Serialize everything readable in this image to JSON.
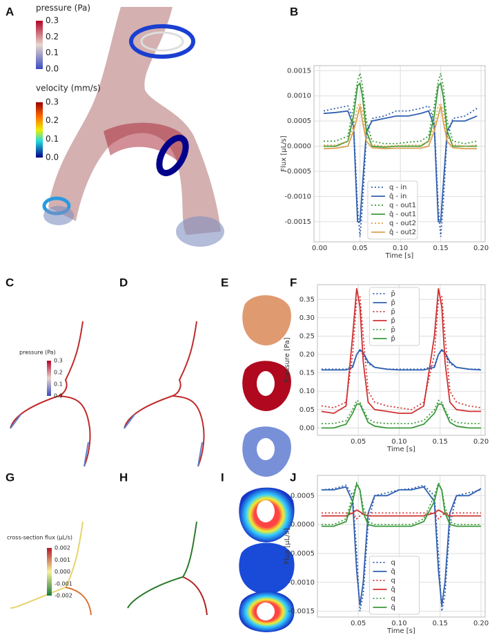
{
  "panel_labels": [
    "A",
    "B",
    "C",
    "D",
    "E",
    "F",
    "G",
    "H",
    "I",
    "J"
  ],
  "colorbars": [
    {
      "title": "pressure (Pa)",
      "ticks": [
        "0.3",
        "0.2",
        "0.1",
        "0.0"
      ]
    },
    {
      "title": "velocity (mm/s)",
      "ticks": [
        "0.3",
        "0.2",
        "0.1",
        "0.0"
      ]
    },
    {
      "title": "pressure (Pa)",
      "ticks": [
        "0.3",
        "0.2",
        "0.1",
        "0.0"
      ]
    },
    {
      "title": "cross-section flux (µL/s)",
      "ticks": [
        "0.002",
        "0.001",
        "0.000",
        "-0.001",
        "-0.002"
      ]
    }
  ],
  "chart_data": [
    {
      "type": "line",
      "xlabel": "Time [s]",
      "ylabel": "Flux [µL/s]",
      "grid": true,
      "legend": "lower center",
      "xlim": [
        -0.007,
        0.205
      ],
      "ylim": [
        -0.0019,
        0.0016
      ],
      "xticks": [
        {
          "value": 0,
          "label": "0.00"
        },
        0.05,
        {
          "value": 0.1,
          "label": "0.10"
        },
        0.15,
        {
          "value": 0.2,
          "label": "0.20"
        }
      ],
      "yticks": [
        {
          "value": -0.0015,
          "label": "-0.0015"
        },
        {
          "value": -0.001,
          "label": "-0.0010"
        },
        {
          "value": -0.0005,
          "label": "-0.0005"
        },
        {
          "value": 0,
          "label": "0.0000"
        },
        {
          "value": 0.0005,
          "label": "0.0005"
        },
        {
          "value": 0.001,
          "label": "0.0010"
        },
        {
          "value": 0.0015,
          "label": "0.0015"
        }
      ],
      "x": [
        0.005,
        0.02,
        0.035,
        0.042,
        0.047,
        0.05,
        0.053,
        0.058,
        0.065,
        0.08,
        0.095,
        0.11,
        0.125,
        0.135,
        0.142,
        0.147,
        0.15,
        0.153,
        0.158,
        0.165,
        0.18,
        0.195
      ],
      "series": [
        {
          "name": "q - in",
          "color": "#2f5fb0",
          "style": "dotted",
          "values": [
            0.0007,
            0.00075,
            0.0008,
            0.0005,
            -0.0012,
            -0.0018,
            -0.0012,
            0.0002,
            0.00055,
            0.0006,
            0.0007,
            0.0007,
            0.00075,
            0.0008,
            0.0005,
            -0.0012,
            -0.0018,
            -0.0012,
            0.0002,
            0.00055,
            0.0006,
            0.00075
          ]
        },
        {
          "name": "q̂ - in",
          "color": "#2f5fb0",
          "style": "solid",
          "values": [
            0.00065,
            0.00067,
            0.0007,
            0.0004,
            -0.0015,
            -0.0015,
            -0.0008,
            0.0003,
            0.0005,
            0.00055,
            0.0006,
            0.0006,
            0.00065,
            0.0007,
            0.0004,
            -0.0015,
            -0.0015,
            -0.0008,
            0.0003,
            0.0005,
            0.0005,
            0.0006
          ]
        },
        {
          "name": "q - out1",
          "color": "#3a9a3a",
          "style": "dotted",
          "values": [
            0.0001,
            0.0001,
            0.0002,
            0.0008,
            0.0013,
            0.00145,
            0.0012,
            0.0005,
            0.0001,
            5e-05,
            5e-05,
            8e-05,
            0.0001,
            0.0002,
            0.0008,
            0.0013,
            0.00145,
            0.0012,
            0.0005,
            0.0001,
            5e-05,
            0.0001
          ]
        },
        {
          "name": "q̂ - out1",
          "color": "#3a9a3a",
          "style": "solid",
          "values": [
            0,
            0,
            0.0001,
            0.0006,
            0.0012,
            0.00125,
            0.001,
            0.0003,
            0,
            -2e-05,
            0,
            0,
            0,
            0.0001,
            0.0006,
            0.0012,
            0.00125,
            0.001,
            0.0003,
            0,
            0,
            0
          ]
        },
        {
          "name": "q - out2",
          "color": "#e0a040",
          "style": "dotted",
          "values": [
            2e-05,
            2e-05,
            0.0001,
            0.0004,
            0.0008,
            0.00085,
            0.0007,
            0.0002,
            3e-05,
            0,
            1e-05,
            2e-05,
            2e-05,
            0.0001,
            0.0004,
            0.0008,
            0.00085,
            0.0007,
            0.0002,
            3e-05,
            0,
            2e-05
          ]
        },
        {
          "name": "q̂ - out2",
          "color": "#d9a050",
          "style": "solid",
          "values": [
            -5e-05,
            -4e-05,
            0,
            0.0003,
            0.0006,
            0.0008,
            0.0005,
            0.0001,
            -3e-05,
            -5e-05,
            -4e-05,
            -4e-05,
            -4e-05,
            0,
            0.0003,
            0.0006,
            0.0008,
            0.0005,
            0.0001,
            -3e-05,
            -5e-05,
            -5e-05
          ]
        }
      ]
    },
    {
      "type": "line",
      "xlabel": "Time [s]",
      "ylabel": "Pressure [Pa]",
      "grid": true,
      "legend": "upper center",
      "xlim": [
        0,
        0.205
      ],
      "ylim": [
        -0.02,
        0.39
      ],
      "xticks": [
        0.05,
        {
          "value": 0.1,
          "label": "0.10"
        },
        0.15,
        {
          "value": 0.2,
          "label": "0.20"
        }
      ],
      "yticks": [
        {
          "value": 0,
          "label": "0.00"
        },
        0.05,
        {
          "value": 0.1,
          "label": "0.10"
        },
        0.15,
        {
          "value": 0.2,
          "label": "0.20"
        },
        0.25,
        {
          "value": 0.3,
          "label": "0.30"
        },
        0.35
      ],
      "x": [
        0.005,
        0.02,
        0.035,
        0.043,
        0.048,
        0.052,
        0.056,
        0.062,
        0.07,
        0.085,
        0.1,
        0.115,
        0.13,
        0.143,
        0.148,
        0.152,
        0.156,
        0.162,
        0.17,
        0.185,
        0.2
      ],
      "series": [
        {
          "name": "p̄",
          "color": "#2f5fb0",
          "style": "dotted",
          "values": [
            0.16,
            0.16,
            0.16,
            0.17,
            0.2,
            0.21,
            0.2,
            0.175,
            0.165,
            0.16,
            0.16,
            0.16,
            0.16,
            0.17,
            0.2,
            0.21,
            0.2,
            0.175,
            0.165,
            0.16,
            0.16
          ]
        },
        {
          "name": "p̂",
          "color": "#2f5fb0",
          "style": "solid",
          "values": [
            0.158,
            0.158,
            0.158,
            0.165,
            0.2,
            0.213,
            0.205,
            0.18,
            0.165,
            0.16,
            0.158,
            0.158,
            0.158,
            0.165,
            0.2,
            0.213,
            0.205,
            0.18,
            0.165,
            0.16,
            0.158
          ]
        },
        {
          "name": "p̄",
          "color": "#d03030",
          "style": "dotted",
          "values": [
            0.06,
            0.055,
            0.07,
            0.2,
            0.35,
            0.36,
            0.25,
            0.1,
            0.07,
            0.06,
            0.055,
            0.05,
            0.07,
            0.2,
            0.35,
            0.36,
            0.25,
            0.1,
            0.07,
            0.06,
            0.055
          ]
        },
        {
          "name": "p̂",
          "color": "#d03030",
          "style": "solid",
          "values": [
            0.045,
            0.04,
            0.06,
            0.25,
            0.38,
            0.33,
            0.18,
            0.07,
            0.05,
            0.045,
            0.04,
            0.04,
            0.06,
            0.25,
            0.38,
            0.33,
            0.18,
            0.07,
            0.05,
            0.045,
            0.045
          ]
        },
        {
          "name": "p̄",
          "color": "#3a9a3a",
          "style": "dotted",
          "values": [
            0.012,
            0.012,
            0.02,
            0.05,
            0.075,
            0.07,
            0.05,
            0.025,
            0.015,
            0.012,
            0.012,
            0.012,
            0.02,
            0.05,
            0.075,
            0.07,
            0.05,
            0.025,
            0.015,
            0.012,
            0.012
          ]
        },
        {
          "name": "p̂",
          "color": "#3a9a3a",
          "style": "solid",
          "values": [
            0,
            0,
            0.01,
            0.04,
            0.065,
            0.065,
            0.045,
            0.015,
            0.005,
            0,
            0,
            0,
            0.01,
            0.04,
            0.065,
            0.065,
            0.045,
            0.015,
            0.005,
            0,
            0
          ]
        }
      ]
    },
    {
      "type": "line",
      "xlabel": "Time [s]",
      "ylabel": "Flux [µL/s]",
      "grid": true,
      "legend": "lower center",
      "xlim": [
        0,
        0.205
      ],
      "ylim": [
        -0.0016,
        0.00085
      ],
      "xticks": [
        0.05,
        {
          "value": 0.1,
          "label": "0.10"
        },
        0.15,
        {
          "value": 0.2,
          "label": "0.20"
        }
      ],
      "yticks": [
        {
          "value": -0.0015,
          "label": "-0.0015"
        },
        {
          "value": -0.001,
          "label": "-0.0010"
        },
        {
          "value": -0.0005,
          "label": "-0.0005"
        },
        {
          "value": 0,
          "label": "0.0000"
        },
        {
          "value": 0.0005,
          "label": "0.0005"
        }
      ],
      "x": [
        0.005,
        0.02,
        0.035,
        0.043,
        0.048,
        0.052,
        0.056,
        0.062,
        0.07,
        0.085,
        0.1,
        0.115,
        0.13,
        0.143,
        0.148,
        0.152,
        0.156,
        0.162,
        0.17,
        0.185,
        0.2
      ],
      "series": [
        {
          "name": "q",
          "color": "#2f5fb0",
          "style": "dotted",
          "values": [
            0.0006,
            0.00062,
            0.00068,
            0.0005,
            -0.0005,
            -0.0015,
            -0.0012,
            0,
            0.0005,
            0.00055,
            0.0006,
            0.00062,
            0.00068,
            0.0005,
            -0.0005,
            -0.0015,
            -0.0012,
            0,
            0.0005,
            0.00055,
            0.0006
          ]
        },
        {
          "name": "q̂",
          "color": "#2f5fb0",
          "style": "solid",
          "values": [
            0.0006,
            0.0006,
            0.00065,
            0.0004,
            -0.0008,
            -0.0014,
            -0.001,
            0.0002,
            0.0005,
            0.0005,
            0.0006,
            0.0006,
            0.00065,
            0.0004,
            -0.0008,
            -0.0014,
            -0.001,
            0.0002,
            0.0005,
            0.0005,
            0.00062
          ]
        },
        {
          "name": "q",
          "color": "#d03030",
          "style": "dotted",
          "values": [
            0.0002,
            0.0002,
            0.0002,
            0.0002,
            0.0001,
            0.00015,
            0.0002,
            0.0002,
            0.0002,
            0.0002,
            0.0002,
            0.0002,
            0.0002,
            0.0002,
            0.0001,
            0.00015,
            0.0002,
            0.0002,
            0.0002,
            0.0002,
            0.0002
          ]
        },
        {
          "name": "q̂",
          "color": "#d03030",
          "style": "solid",
          "values": [
            0.00015,
            0.00015,
            0.00015,
            0.0002,
            0.00025,
            0.00022,
            0.00018,
            0.00015,
            0.00015,
            0.00015,
            0.00015,
            0.00015,
            0.00015,
            0.0002,
            0.00025,
            0.00022,
            0.00018,
            0.00015,
            0.00015,
            0.00015,
            0.00015
          ]
        },
        {
          "name": "q",
          "color": "#3a9a3a",
          "style": "dotted",
          "values": [
            0,
            0,
            0.0001,
            0.0005,
            0.00072,
            0.0006,
            0.0003,
            5e-05,
            0,
            0,
            0,
            0,
            0.0001,
            0.0005,
            0.00072,
            0.0006,
            0.0003,
            5e-05,
            0,
            0,
            0
          ]
        },
        {
          "name": "q̂",
          "color": "#3a9a3a",
          "style": "solid",
          "values": [
            -3e-05,
            -3e-05,
            5e-05,
            0.0004,
            0.0007,
            0.0006,
            0.0002,
            0,
            -3e-05,
            -3e-05,
            -3e-05,
            -3e-05,
            5e-05,
            0.0004,
            0.0007,
            0.0006,
            0.0002,
            0,
            -3e-05,
            -3e-05,
            -3e-05
          ]
        }
      ]
    }
  ]
}
